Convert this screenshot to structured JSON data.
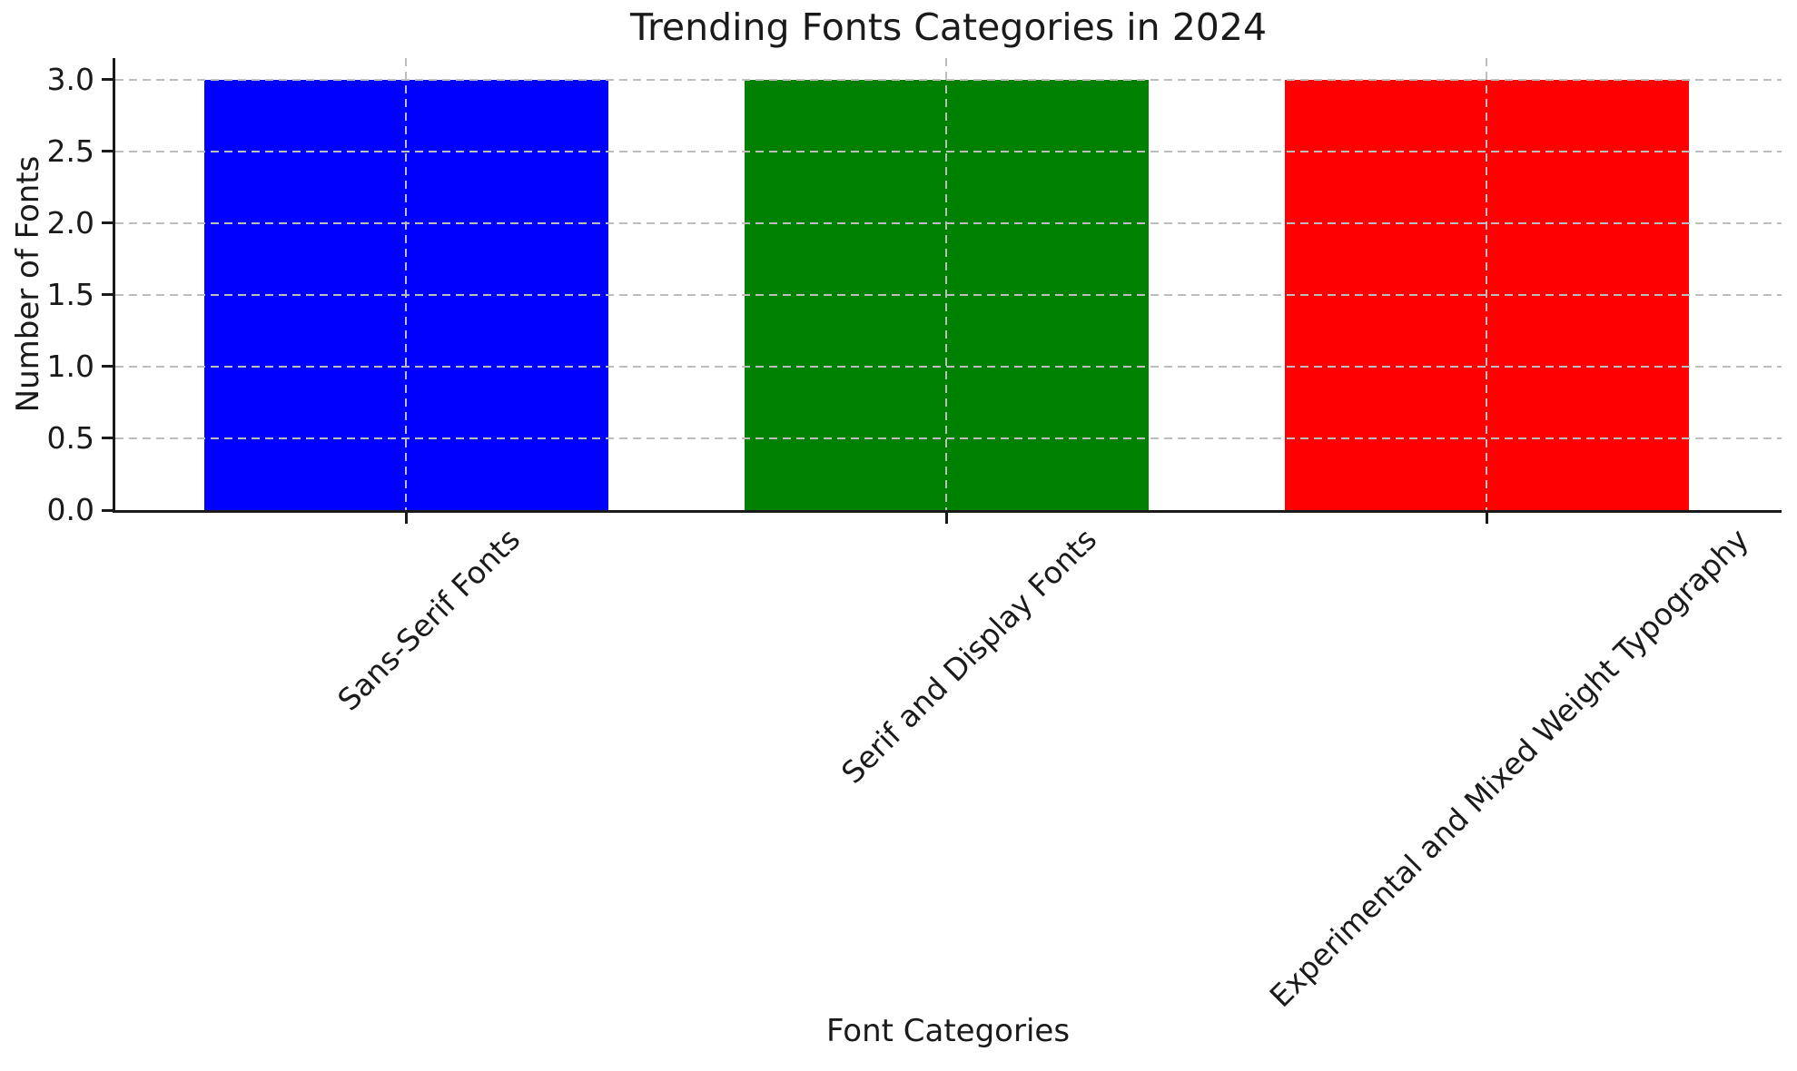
{
  "chart_data": {
    "type": "bar",
    "title": "Trending Fonts Categories in 2024",
    "xlabel": "Font Categories",
    "ylabel": "Number of Fonts",
    "categories": [
      "Sans-Serif Fonts",
      "Serif and Display Fonts",
      "Experimental and Mixed Weight Typography"
    ],
    "values": [
      3,
      3,
      3
    ],
    "bar_colors": [
      "#0000ff",
      "#008000",
      "#ff0000"
    ],
    "ytick_values": [
      0.0,
      0.5,
      1.0,
      1.5,
      2.0,
      2.5,
      3.0
    ],
    "ytick_labels": [
      "0.0",
      "0.5",
      "1.0",
      "1.5",
      "2.0",
      "2.5",
      "3.0"
    ],
    "ylim": [
      0,
      3.15
    ],
    "x_tick_rotation_deg": 45,
    "grid": {
      "style": "dashed",
      "color": "#bdbdbd",
      "axes": "both",
      "drawn_over_bars": true
    },
    "axis_color": "#1a1a1a",
    "text_color": "#1a1a1a",
    "background_color": "#ffffff",
    "legend": "none"
  }
}
